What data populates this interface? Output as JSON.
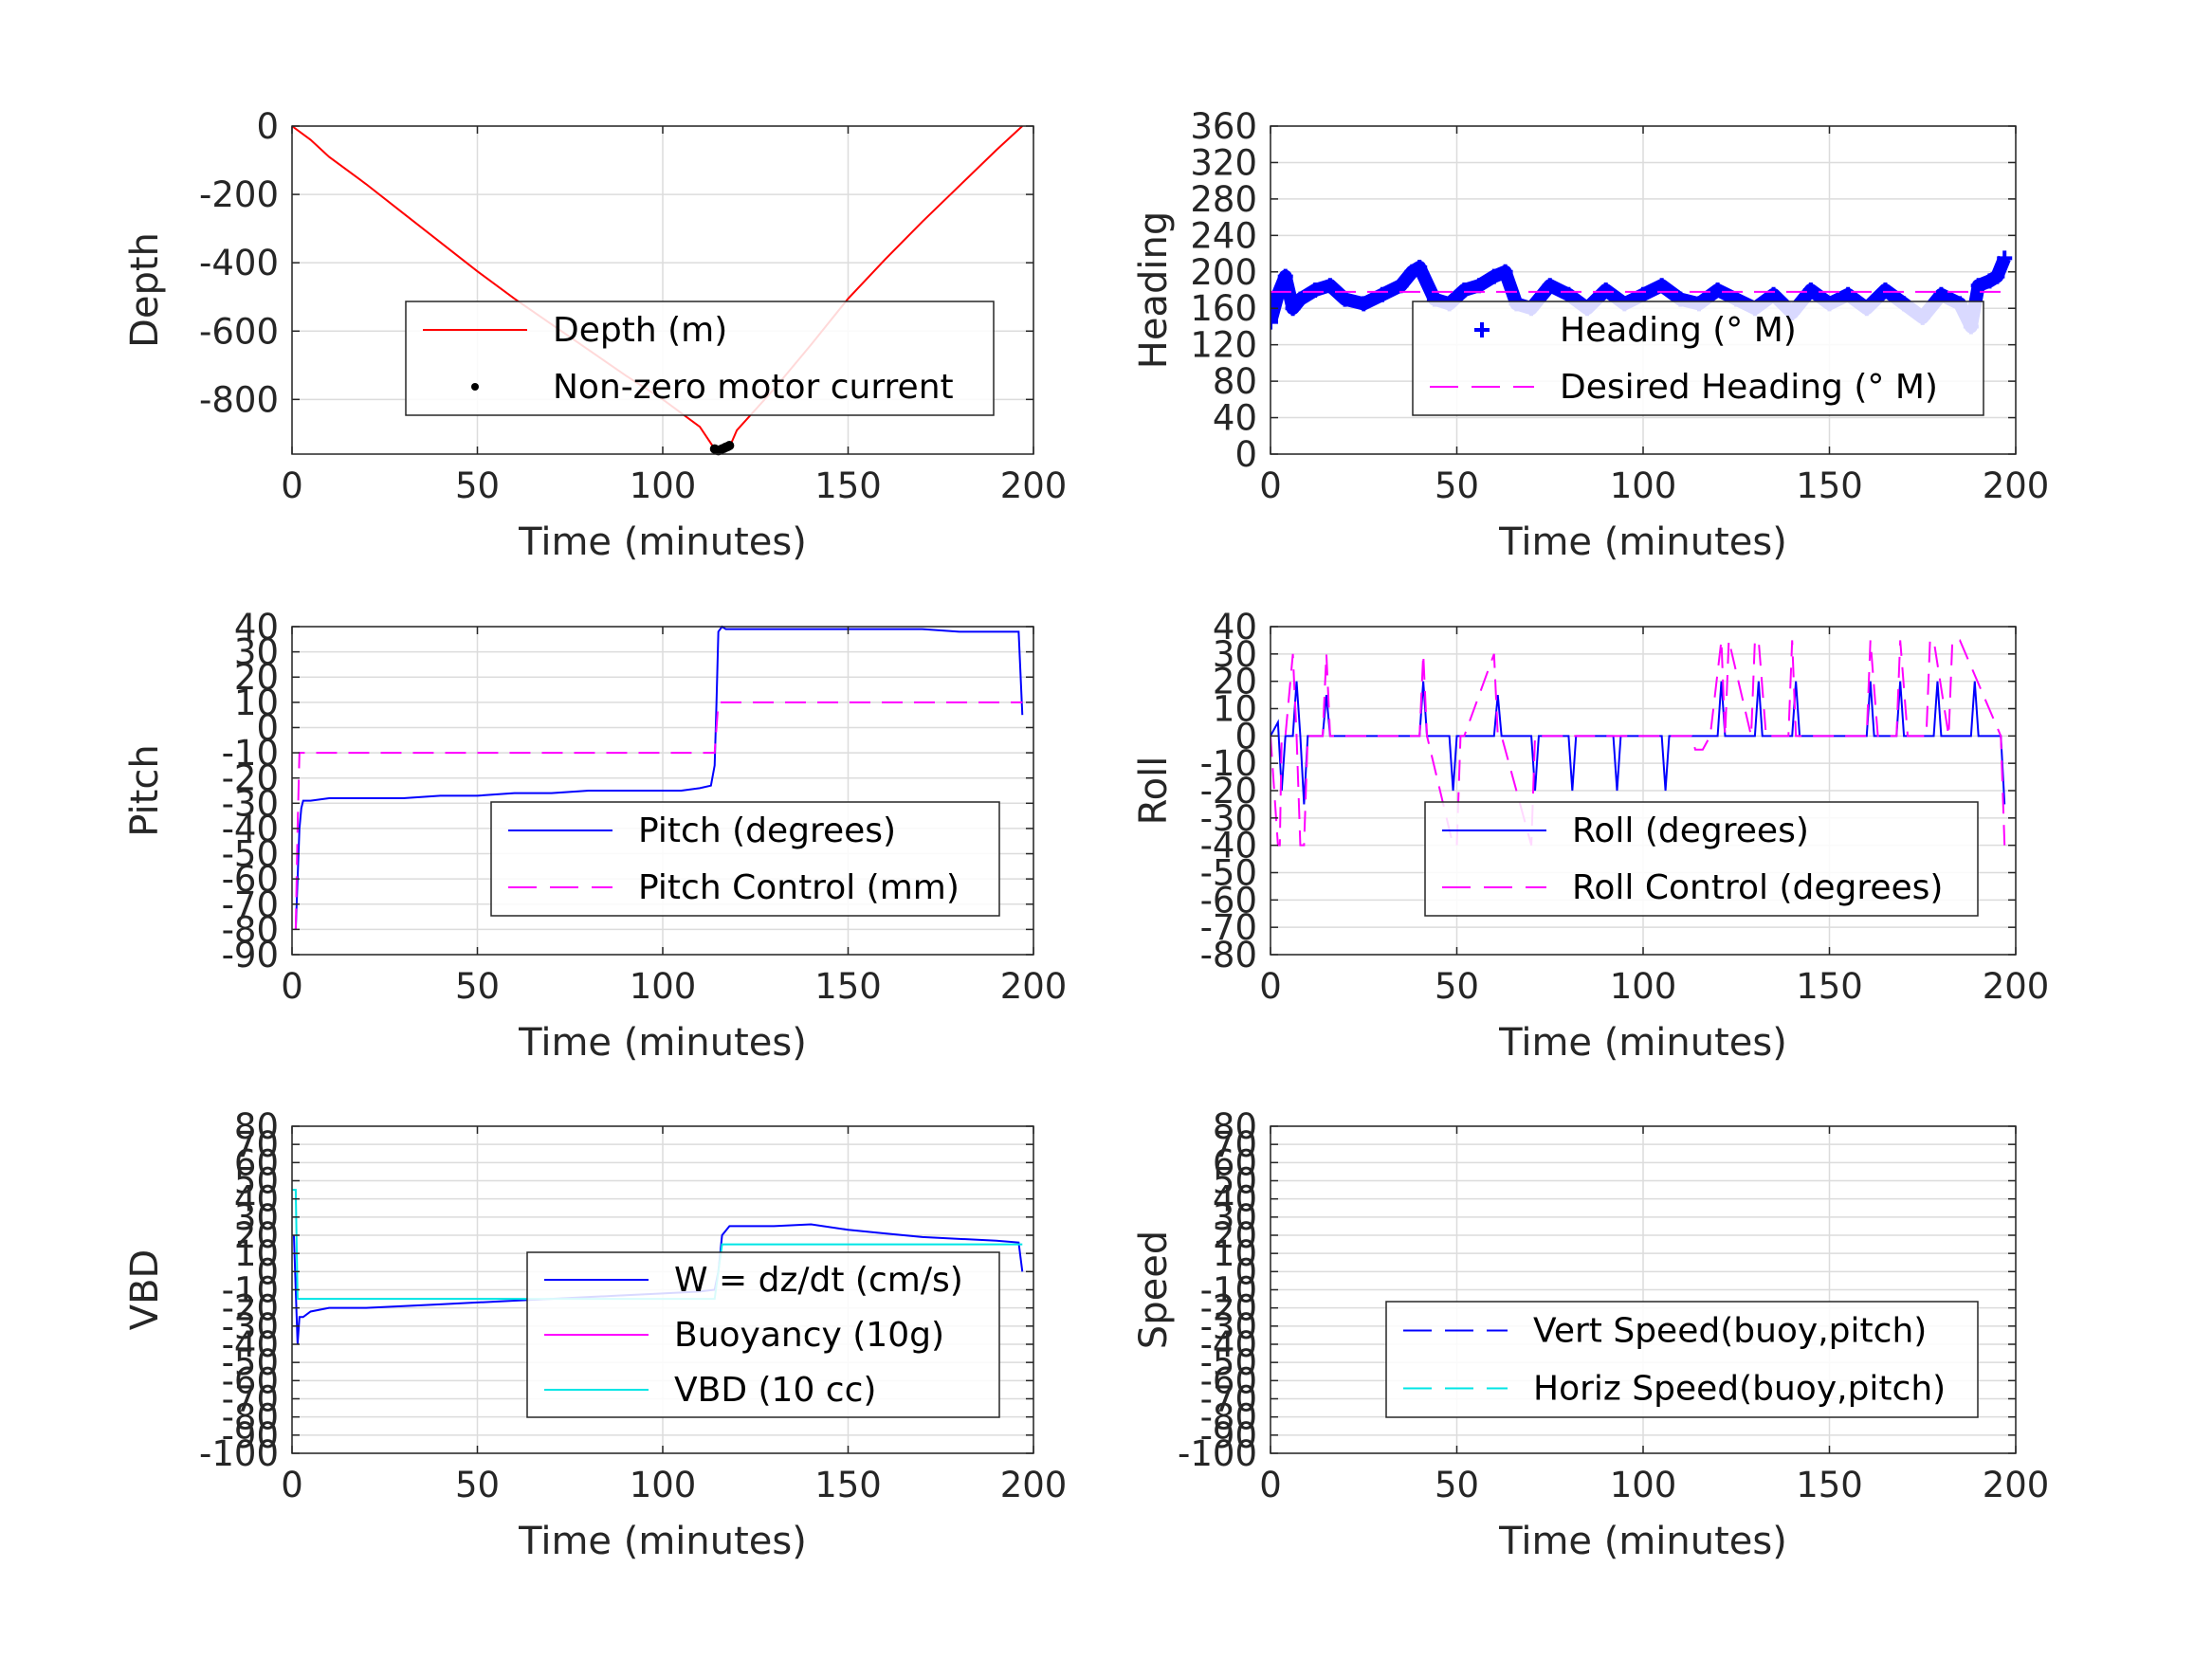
{
  "chart_data": [
    {
      "type": "line",
      "id": "depth",
      "xlabel": "Time (minutes)",
      "ylabel": "Depth",
      "xlim": [
        0,
        200
      ],
      "ylim": [
        -960,
        0
      ],
      "xticks": [
        0,
        50,
        100,
        150,
        200
      ],
      "yticks": [
        0,
        -200,
        -400,
        -600,
        -800
      ],
      "grid": true,
      "legend_position": "center-right",
      "series": [
        {
          "name": "Depth (m)",
          "color": "#ff0000",
          "style": "solid",
          "x": [
            0,
            5,
            10,
            20,
            30,
            40,
            50,
            60,
            70,
            80,
            90,
            100,
            110,
            114,
            116,
            118,
            120,
            130,
            140,
            150,
            160,
            170,
            180,
            190,
            197
          ],
          "y": [
            0,
            -40,
            -90,
            -170,
            -255,
            -340,
            -425,
            -505,
            -580,
            -655,
            -730,
            -800,
            -880,
            -945,
            -945,
            -940,
            -890,
            -770,
            -640,
            -505,
            -390,
            -280,
            -175,
            -70,
            0
          ]
        },
        {
          "name": "Non-zero motor current",
          "color": "#000000",
          "style": "dots",
          "x": [
            114,
            114.5,
            115,
            115.5,
            116,
            116.5,
            117,
            117.5,
            118
          ],
          "y": [
            -945,
            -948,
            -950,
            -948,
            -945,
            -943,
            -940,
            -938,
            -935
          ]
        }
      ]
    },
    {
      "type": "line",
      "id": "heading",
      "xlabel": "Time (minutes)",
      "ylabel": "Heading",
      "xlim": [
        0,
        200
      ],
      "ylim": [
        0,
        360
      ],
      "xticks": [
        0,
        50,
        100,
        150,
        200
      ],
      "yticks": [
        0,
        40,
        80,
        120,
        160,
        200,
        240,
        280,
        320,
        360
      ],
      "grid": true,
      "legend_position": "lower-right",
      "series": [
        {
          "name": "Heading (° M)",
          "color": "#0000ff",
          "style": "plus",
          "x": [
            0,
            2,
            4,
            6,
            8,
            12,
            16,
            20,
            25,
            30,
            35,
            38,
            40,
            44,
            48,
            52,
            56,
            60,
            63,
            66,
            70,
            75,
            80,
            85,
            90,
            95,
            100,
            105,
            110,
            115,
            120,
            125,
            130,
            135,
            140,
            145,
            150,
            155,
            160,
            165,
            170,
            175,
            180,
            185,
            188,
            190,
            193,
            195,
            197
          ],
          "y": [
            145,
            175,
            195,
            160,
            170,
            180,
            185,
            170,
            165,
            175,
            185,
            200,
            205,
            170,
            165,
            180,
            185,
            195,
            200,
            165,
            160,
            185,
            175,
            160,
            180,
            165,
            175,
            185,
            170,
            165,
            180,
            170,
            160,
            175,
            155,
            180,
            165,
            175,
            160,
            180,
            165,
            150,
            175,
            165,
            140,
            185,
            190,
            195,
            215
          ]
        },
        {
          "name": "Desired Heading (° M)",
          "color": "#ff00ff",
          "style": "dashed",
          "x": [
            0,
            197
          ],
          "y": [
            178,
            178
          ]
        }
      ]
    },
    {
      "type": "line",
      "id": "pitch",
      "xlabel": "Time (minutes)",
      "ylabel": "Pitch",
      "xlim": [
        0,
        200
      ],
      "ylim": [
        -90,
        40
      ],
      "xticks": [
        0,
        50,
        100,
        150,
        200
      ],
      "yticks": [
        40,
        30,
        20,
        10,
        0,
        -10,
        -20,
        -30,
        -40,
        -50,
        -60,
        -70,
        -80,
        -90
      ],
      "grid": true,
      "legend_position": "lower-right",
      "series": [
        {
          "name": "Pitch (degrees)",
          "color": "#0000ff",
          "style": "solid",
          "x": [
            1,
            1.5,
            2,
            2.5,
            3,
            5,
            10,
            20,
            30,
            40,
            50,
            60,
            70,
            80,
            90,
            100,
            105,
            110,
            113,
            114,
            114.5,
            115,
            116,
            117,
            120,
            130,
            140,
            150,
            160,
            170,
            180,
            190,
            196,
            197
          ],
          "y": [
            -80,
            -60,
            -40,
            -32,
            -29,
            -29,
            -28,
            -28,
            -28,
            -27,
            -27,
            -26,
            -26,
            -25,
            -25,
            -25,
            -25,
            -24,
            -23,
            -15,
            10,
            38,
            40,
            39,
            39,
            39,
            39,
            39,
            39,
            39,
            38,
            38,
            38,
            5
          ]
        },
        {
          "name": "Pitch Control (mm)",
          "color": "#ff00ff",
          "style": "dashed",
          "x": [
            1,
            1.5,
            2,
            3,
            5,
            20,
            50,
            80,
            110,
            114,
            115,
            116,
            120,
            150,
            180,
            197
          ],
          "y": [
            -80,
            -40,
            -10,
            -10,
            -10,
            -10,
            -10,
            -10,
            -10,
            -10,
            10,
            10,
            10,
            10,
            10,
            10
          ]
        }
      ]
    },
    {
      "type": "line",
      "id": "roll",
      "xlabel": "Time (minutes)",
      "ylabel": "Roll",
      "xlim": [
        0,
        200
      ],
      "ylim": [
        -80,
        40
      ],
      "xticks": [
        0,
        50,
        100,
        150,
        200
      ],
      "yticks": [
        40,
        30,
        20,
        10,
        0,
        -10,
        -20,
        -30,
        -40,
        -50,
        -60,
        -70,
        -80
      ],
      "grid": true,
      "legend_position": "lower-right",
      "series": [
        {
          "name": "Roll (degrees)",
          "color": "#0000ff",
          "style": "solid",
          "x": [
            0,
            2,
            3,
            4,
            6,
            7,
            8,
            9,
            10,
            14,
            15,
            16,
            20,
            30,
            40,
            41,
            42,
            48,
            49,
            50,
            60,
            61,
            62,
            70,
            71,
            72,
            80,
            81,
            82,
            92,
            93,
            94,
            105,
            106,
            107,
            120,
            121,
            122,
            130,
            131,
            132,
            140,
            141,
            142,
            160,
            161,
            162,
            168,
            169,
            170,
            178,
            179,
            180,
            188,
            189,
            190,
            196,
            197
          ],
          "y": [
            0,
            5,
            -20,
            0,
            0,
            20,
            0,
            -25,
            0,
            0,
            15,
            0,
            0,
            0,
            0,
            20,
            0,
            0,
            -20,
            0,
            0,
            15,
            0,
            0,
            -20,
            0,
            0,
            -20,
            0,
            0,
            -20,
            0,
            0,
            -20,
            0,
            0,
            20,
            0,
            0,
            20,
            0,
            0,
            20,
            0,
            0,
            20,
            0,
            0,
            20,
            0,
            0,
            20,
            0,
            0,
            20,
            0,
            0,
            -25
          ]
        },
        {
          "name": "Roll Control (degrees)",
          "color": "#ff00ff",
          "style": "dashed",
          "x": [
            0,
            2,
            2.5,
            3,
            4,
            6,
            7,
            8,
            9,
            10,
            11,
            14,
            15,
            16,
            40,
            41,
            42,
            49,
            50,
            51,
            52,
            60,
            61,
            62,
            70,
            71,
            72,
            113,
            114,
            116,
            118,
            121,
            122,
            123,
            129,
            130,
            131,
            133,
            139,
            140,
            141,
            160,
            161,
            163,
            168,
            169,
            171,
            176,
            177,
            178,
            182,
            183,
            185,
            196,
            197
          ],
          "y": [
            0,
            -40,
            -40,
            0,
            0,
            30,
            0,
            -40,
            -40,
            0,
            0,
            0,
            30,
            0,
            0,
            30,
            0,
            -40,
            -40,
            0,
            0,
            30,
            0,
            0,
            -40,
            0,
            0,
            0,
            -5,
            -5,
            0,
            35,
            0,
            35,
            0,
            35,
            35,
            0,
            0,
            35,
            0,
            0,
            35,
            0,
            0,
            35,
            0,
            0,
            35,
            35,
            0,
            35,
            35,
            0,
            -40
          ]
        }
      ]
    },
    {
      "type": "line",
      "id": "vbd",
      "xlabel": "Time (minutes)",
      "ylabel": "VBD",
      "xlim": [
        0,
        200
      ],
      "ylim": [
        -100,
        80
      ],
      "xticks": [
        0,
        50,
        100,
        150,
        200
      ],
      "yticks": [
        80,
        70,
        60,
        50,
        40,
        30,
        20,
        10,
        0,
        -10,
        -20,
        -30,
        -40,
        -50,
        -60,
        -70,
        -80,
        -90,
        -100
      ],
      "grid": true,
      "legend_position": "center-right",
      "series": [
        {
          "name": "W = dz/dt (cm/s)",
          "color": "#0000ff",
          "style": "solid",
          "x": [
            0.5,
            1,
            1.5,
            2,
            3,
            5,
            10,
            20,
            30,
            40,
            50,
            60,
            70,
            80,
            90,
            100,
            110,
            114,
            115,
            116,
            118,
            120,
            130,
            140,
            150,
            160,
            170,
            180,
            190,
            196,
            197
          ],
          "y": [
            20,
            -10,
            -40,
            -25,
            -25,
            -22,
            -20,
            -20,
            -19,
            -18,
            -17,
            -16,
            -15,
            -14,
            -13,
            -12,
            -11,
            -10,
            0,
            20,
            25,
            25,
            25,
            26,
            23,
            21,
            19,
            18,
            17,
            16,
            0
          ]
        },
        {
          "name": "Buoyancy (10g)",
          "color": "#ff00ff",
          "style": "solid",
          "x": [],
          "y": []
        },
        {
          "name": "VBD (10 cc)",
          "color": "#00e5e5",
          "style": "solid",
          "x": [
            0,
            1,
            1.5,
            2,
            5,
            50,
            100,
            114,
            115,
            116,
            120,
            150,
            190,
            197
          ],
          "y": [
            45,
            45,
            -15,
            -15,
            -15,
            -15,
            -15,
            -15,
            0,
            15,
            15,
            15,
            15,
            15
          ]
        }
      ]
    },
    {
      "type": "line",
      "id": "speed",
      "xlabel": "Time (minutes)",
      "ylabel": "Speed",
      "xlim": [
        0,
        200
      ],
      "ylim": [
        -100,
        80
      ],
      "xticks": [
        0,
        50,
        100,
        150,
        200
      ],
      "yticks": [
        80,
        70,
        60,
        50,
        40,
        30,
        20,
        10,
        0,
        -10,
        -20,
        -30,
        -40,
        -50,
        -60,
        -70,
        -80,
        -90,
        -100
      ],
      "grid": true,
      "legend_position": "lower-right",
      "series": [
        {
          "name": "Vert Speed(buoy,pitch)",
          "color": "#0000ff",
          "style": "dashed",
          "x": [],
          "y": []
        },
        {
          "name": "Horiz Speed(buoy,pitch)",
          "color": "#00e5e5",
          "style": "dashed",
          "x": [],
          "y": []
        }
      ]
    }
  ]
}
